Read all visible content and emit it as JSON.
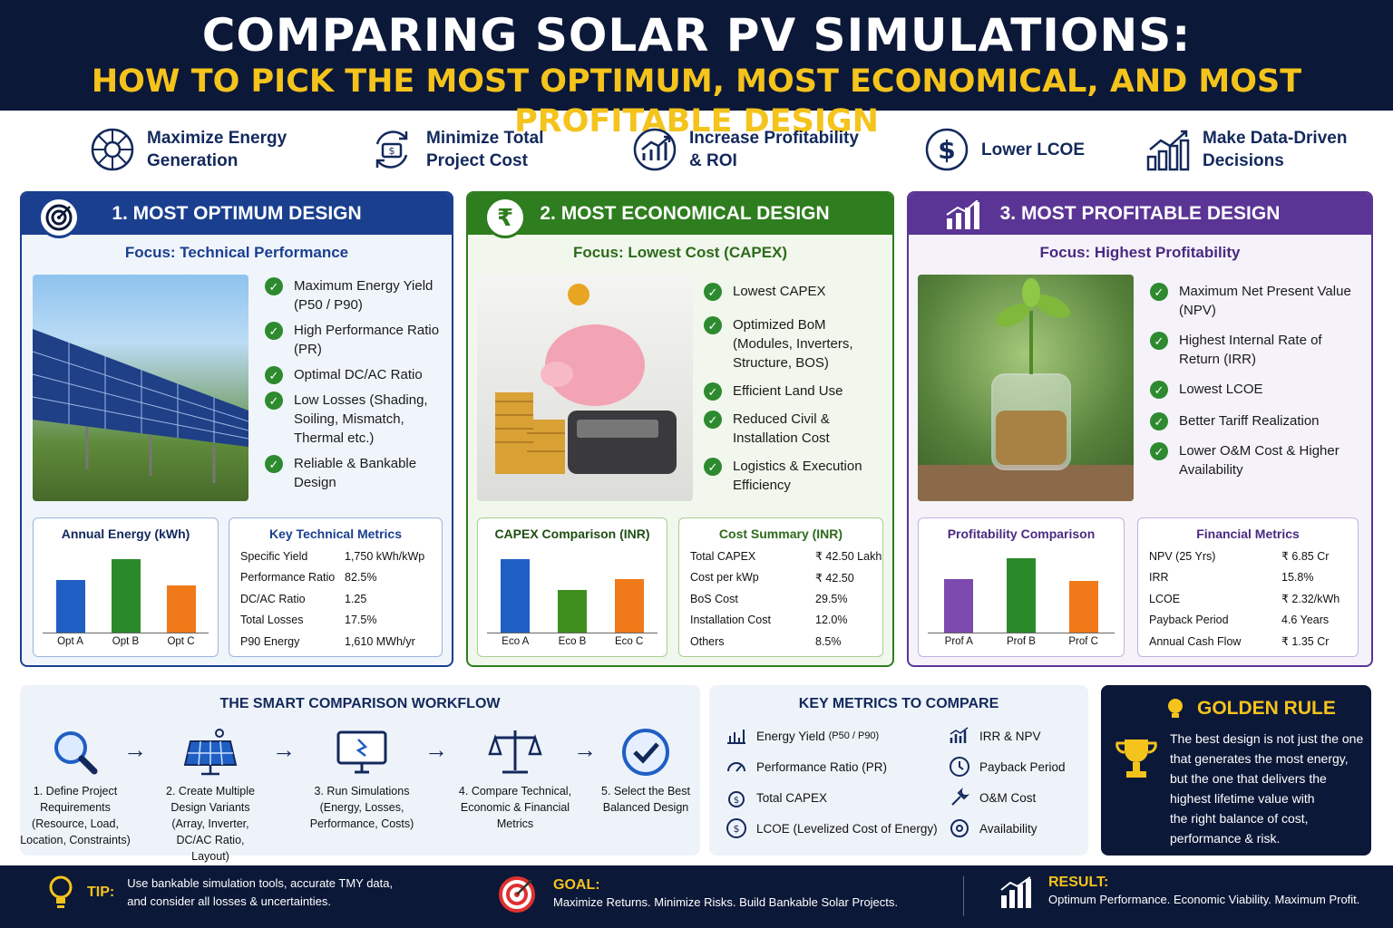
{
  "header": {
    "title": "COMPARING SOLAR PV SIMULATIONS:",
    "subtitle": "HOW TO PICK THE MOST OPTIMUM, MOST ECONOMICAL, AND MOST PROFITABLE DESIGN"
  },
  "goals": [
    {
      "icon": "sun-target-icon",
      "label": "Maximize Energy\nGeneration"
    },
    {
      "icon": "cost-cycle-icon",
      "label": "Minimize Total\nProject Cost"
    },
    {
      "icon": "growth-chart-icon",
      "label": "Increase Profitability\n& ROI"
    },
    {
      "icon": "dollar-circle-icon",
      "label": "Lower LCOE"
    },
    {
      "icon": "bar-chart-icon",
      "label": "Make Data-Driven\nDecisions"
    }
  ],
  "colors": {
    "navy": "#0c1838",
    "blue": "#1a3f8f",
    "green": "#2e7d1e",
    "purple": "#5b3595",
    "gold": "#f4c31c",
    "orange": "#f07a1a"
  },
  "panels": {
    "optimum": {
      "title": "1. MOST OPTIMUM DESIGN",
      "focus": "Focus: Technical Performance",
      "checks": [
        "Maximum Energy Yield (P50 / P90)",
        "High Performance Ratio (PR)",
        "Optimal DC/AC Ratio",
        "Low Losses (Shading, Soiling, Mismatch, Thermal etc.)",
        "Reliable & Bankable Design"
      ],
      "chart_title": "Annual Energy (kWh)",
      "metrics_title": "Key Technical Metrics",
      "metrics": [
        {
          "k": "Specific Yield",
          "v": "1,750 kWh/kWp"
        },
        {
          "k": "Performance Ratio",
          "v": "82.5%"
        },
        {
          "k": "DC/AC Ratio",
          "v": "1.25"
        },
        {
          "k": "Total Losses",
          "v": "17.5%"
        },
        {
          "k": "P90 Energy",
          "v": "1,610 MWh/yr"
        }
      ]
    },
    "economical": {
      "title": "2. MOST ECONOMICAL DESIGN",
      "badge": "₹",
      "focus": "Focus: Lowest Cost (CAPEX)",
      "checks": [
        "Lowest CAPEX",
        "Optimized BoM (Modules, Inverters, Structure, BOS)",
        "Efficient Land Use",
        "Reduced Civil & Installation Cost",
        "Logistics & Execution Efficiency"
      ],
      "chart_title": "CAPEX Comparison (INR)",
      "metrics_title": "Cost Summary (INR)",
      "metrics": [
        {
          "k": "Total CAPEX",
          "v": "₹ 42.50 Lakh"
        },
        {
          "k": "Cost per kWp",
          "v": "₹ 42.50"
        },
        {
          "k": "BoS Cost",
          "v": "29.5%"
        },
        {
          "k": "Installation Cost",
          "v": "12.0%"
        },
        {
          "k": "Others",
          "v": "8.5%"
        }
      ]
    },
    "profitable": {
      "title": "3. MOST PROFITABLE DESIGN",
      "focus": "Focus: Highest Profitability",
      "checks": [
        "Maximum Net Present Value (NPV)",
        "Highest Internal Rate of Return (IRR)",
        "Lowest LCOE",
        "Better Tariff Realization",
        "Lower O&M Cost & Higher Availability"
      ],
      "chart_title": "Profitability Comparison",
      "metrics_title": "Financial Metrics",
      "metrics": [
        {
          "k": "NPV (25 Yrs)",
          "v": "₹ 6.85 Cr"
        },
        {
          "k": "IRR",
          "v": "15.8%"
        },
        {
          "k": "LCOE",
          "v": "₹ 2.32/kWh"
        },
        {
          "k": "Payback Period",
          "v": "4.6 Years"
        },
        {
          "k": "Annual Cash Flow",
          "v": "₹ 1.35 Cr"
        }
      ]
    }
  },
  "chart_data": [
    {
      "type": "bar",
      "title": "Annual Energy (kWh)",
      "categories": [
        "Opt A",
        "Opt B",
        "Opt C"
      ],
      "values": [
        62,
        86,
        55
      ],
      "colors": [
        "#1f5fc4",
        "#2a8a2a",
        "#f07a1a"
      ]
    },
    {
      "type": "bar",
      "title": "CAPEX Comparison (INR)",
      "categories": [
        "Eco A",
        "Eco B",
        "Eco C"
      ],
      "values": [
        86,
        50,
        63
      ],
      "colors": [
        "#1f5fc4",
        "#3f8f1f",
        "#f07a1a"
      ]
    },
    {
      "type": "bar",
      "title": "Profitability Comparison",
      "categories": [
        "Prof A",
        "Prof B",
        "Prof C"
      ],
      "values": [
        63,
        87,
        61
      ],
      "colors": [
        "#7d4ab0",
        "#2a8a2a",
        "#f07a1a"
      ]
    }
  ],
  "workflow": {
    "title": "THE SMART COMPARISON WORKFLOW",
    "steps": [
      {
        "l1": "1. Define Project",
        "l2": "Requirements",
        "l3": "(Resource, Load,",
        "l4": "Location, Constraints)"
      },
      {
        "l1": "2. Create Multiple",
        "l2": "Design Variants",
        "l3": "(Array, Inverter,",
        "l4": "DC/AC Ratio, Layout)"
      },
      {
        "l1": "3. Run Simulations",
        "l2": "(Energy, Losses,",
        "l3": "Performance, Costs)",
        "l4": ""
      },
      {
        "l1": "4. Compare Technical,",
        "l2": "Economic & Financial",
        "l3": "Metrics",
        "l4": ""
      },
      {
        "l1": "5. Select the Best",
        "l2": "Balanced Design",
        "l3": "",
        "l4": ""
      }
    ],
    "arrow": "→"
  },
  "key_metrics": {
    "title": "KEY METRICS TO COMPARE",
    "left": [
      "Energy Yield",
      "Performance Ratio (PR)",
      "Total CAPEX",
      "LCOE (Levelized Cost of Energy)"
    ],
    "energy_suffix": "(P50 / P90)",
    "right": [
      "IRR & NPV",
      "Payback Period",
      "O&M Cost",
      "Availability"
    ]
  },
  "golden_rule": {
    "title": "GOLDEN RULE",
    "lines": [
      "The best design is not just the one",
      "that generates the most energy,",
      "but the one that delivers the",
      "highest lifetime value with",
      "the right balance of cost,",
      "performance & risk."
    ]
  },
  "footer": {
    "tip_label": "TIP:",
    "tip_l1": "Use bankable simulation tools, accurate TMY data,",
    "tip_l2": "and consider all losses & uncertainties.",
    "goal_label": "GOAL:",
    "goal_text": "Maximize Returns. Minimize Risks. Build Bankable Solar Projects.",
    "result_label": "RESULT:",
    "result_text": "Optimum Performance. Economic Viability. Maximum Profit."
  }
}
